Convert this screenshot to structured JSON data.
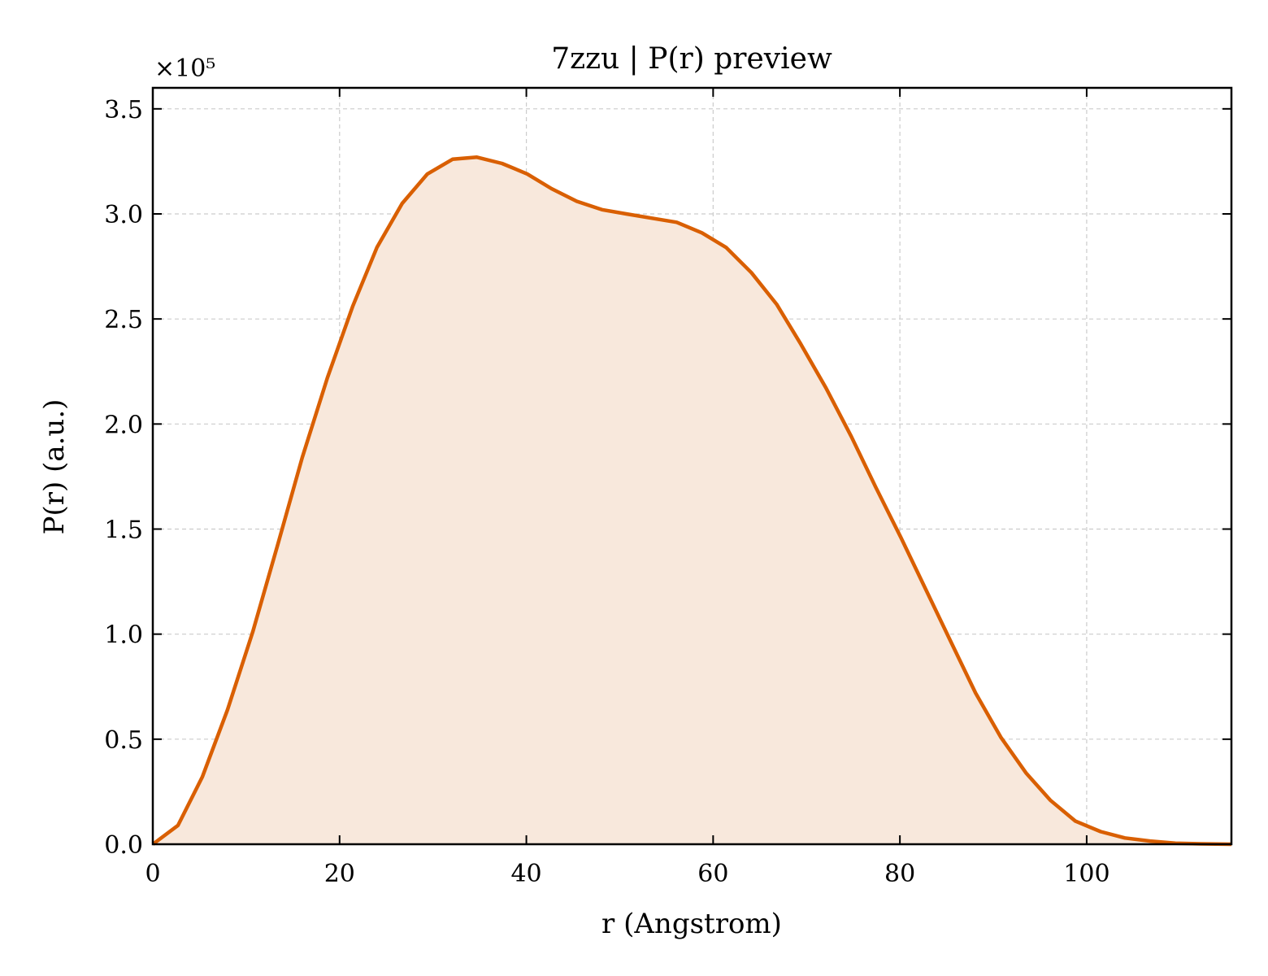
{
  "chart_data": {
    "type": "area",
    "title": "7zzu | P(r) preview",
    "xlabel": "r (Angstrom)",
    "ylabel": "P(r) (a.u.)",
    "y_scale_label": "×10⁵",
    "y_multiplier": 100000,
    "xlim": [
      0,
      115.5
    ],
    "ylim": [
      0,
      3.6
    ],
    "x_ticks": [
      0,
      20,
      40,
      60,
      80,
      100
    ],
    "x_tick_labels": [
      "0",
      "20",
      "40",
      "60",
      "80",
      "100"
    ],
    "y_ticks": [
      0.0,
      0.5,
      1.0,
      1.5,
      2.0,
      2.5,
      3.0,
      3.5
    ],
    "y_tick_labels": [
      "0.0",
      "0.5",
      "1.0",
      "1.5",
      "2.0",
      "2.5",
      "3.0",
      "3.5"
    ],
    "grid": true,
    "series": [
      {
        "color": "#d95f02",
        "fill_color": "#f8e8dc",
        "x": [
          0,
          2.7,
          5.3,
          8.0,
          10.7,
          13.4,
          16.0,
          18.7,
          21.4,
          24.0,
          26.7,
          29.4,
          32.1,
          34.7,
          37.4,
          40.1,
          42.7,
          45.4,
          48.1,
          50.7,
          53.4,
          56.1,
          58.8,
          61.4,
          64.1,
          66.8,
          69.4,
          72.1,
          74.8,
          77.4,
          80.1,
          82.8,
          85.5,
          88.1,
          90.8,
          93.5,
          96.1,
          98.8,
          101.5,
          104.1,
          106.8,
          109.5,
          112.2,
          115.5
        ],
        "y": [
          0.0,
          0.09,
          0.32,
          0.64,
          1.01,
          1.43,
          1.84,
          2.22,
          2.56,
          2.84,
          3.05,
          3.19,
          3.26,
          3.27,
          3.24,
          3.19,
          3.12,
          3.06,
          3.02,
          3.0,
          2.98,
          2.96,
          2.91,
          2.84,
          2.72,
          2.57,
          2.38,
          2.17,
          1.94,
          1.7,
          1.46,
          1.21,
          0.96,
          0.72,
          0.51,
          0.34,
          0.21,
          0.11,
          0.06,
          0.03,
          0.015,
          0.005,
          0.002,
          0.0
        ]
      }
    ]
  }
}
